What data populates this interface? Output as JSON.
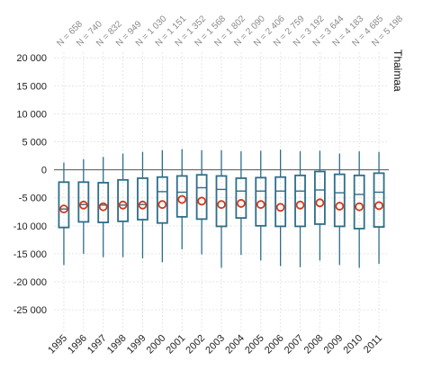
{
  "chart_data": {
    "type": "box",
    "panel_title": "Thaimaa",
    "categories": [
      "1995",
      "1996",
      "1997",
      "1998",
      "1999",
      "2000",
      "2001",
      "2002",
      "2003",
      "2004",
      "2005",
      "2006",
      "2007",
      "2008",
      "2009",
      "2010",
      "2011"
    ],
    "n_labels": [
      "N = 658",
      "N = 740",
      "N = 832",
      "N = 949",
      "N = 1 030",
      "N = 1 151",
      "N = 1 352",
      "N = 1 568",
      "N = 1 802",
      "N = 2 090",
      "N = 2 406",
      "N = 2 759",
      "N = 3 192",
      "N = 3 644",
      "N = 4 183",
      "N = 4 685",
      "N = 5 198"
    ],
    "ylim": [
      -29000,
      21000
    ],
    "yticks": [
      20000,
      15000,
      10000,
      5000,
      0,
      -5000,
      -10000,
      -15000,
      -20000,
      -25000
    ],
    "ytick_labels": [
      "20 000",
      "15 000",
      "10 000",
      "5 000",
      "0",
      "-5 000",
      "-10 000",
      "-15 000",
      "-20 000",
      "-25 000"
    ],
    "grid": true,
    "boxes": [
      {
        "whisker_low": -17000,
        "q1": -10300,
        "median": -7000,
        "q3": -2200,
        "whisker_high": 1300,
        "mean": -7000
      },
      {
        "whisker_low": -15000,
        "q1": -9300,
        "median": -6200,
        "q3": -2200,
        "whisker_high": 1900,
        "mean": -6300
      },
      {
        "whisker_low": -15600,
        "q1": -9400,
        "median": -6300,
        "q3": -2300,
        "whisker_high": 2300,
        "mean": -6600
      },
      {
        "whisker_low": -15600,
        "q1": -9200,
        "median": -6300,
        "q3": -1800,
        "whisker_high": 2900,
        "mean": -6300
      },
      {
        "whisker_low": -15800,
        "q1": -8900,
        "median": -6200,
        "q3": -1500,
        "whisker_high": 3200,
        "mean": -6300
      },
      {
        "whisker_low": -16500,
        "q1": -9500,
        "median": -3900,
        "q3": -1300,
        "whisker_high": 3500,
        "mean": -6200
      },
      {
        "whisker_low": -14200,
        "q1": -8400,
        "median": -4000,
        "q3": -1100,
        "whisker_high": 3700,
        "mean": -5300
      },
      {
        "whisker_low": -15100,
        "q1": -8800,
        "median": -3200,
        "q3": -900,
        "whisker_high": 3500,
        "mean": -5600
      },
      {
        "whisker_low": -17500,
        "q1": -10100,
        "median": -3500,
        "q3": -1100,
        "whisker_high": 3500,
        "mean": -6200
      },
      {
        "whisker_low": -15200,
        "q1": -8600,
        "median": -3800,
        "q3": -1500,
        "whisker_high": 3300,
        "mean": -6000
      },
      {
        "whisker_low": -16200,
        "q1": -10000,
        "median": -3800,
        "q3": -1400,
        "whisker_high": 3400,
        "mean": -6200
      },
      {
        "whisker_low": -17200,
        "q1": -10100,
        "median": -3800,
        "q3": -1300,
        "whisker_high": 3600,
        "mean": -6700
      },
      {
        "whisker_low": -17400,
        "q1": -10100,
        "median": -3800,
        "q3": -1000,
        "whisker_high": 3300,
        "mean": -6300
      },
      {
        "whisker_low": -16200,
        "q1": -9700,
        "median": -3600,
        "q3": -300,
        "whisker_high": 3400,
        "mean": -5900
      },
      {
        "whisker_low": -17000,
        "q1": -10100,
        "median": -4100,
        "q3": -800,
        "whisker_high": 2900,
        "mean": -6500
      },
      {
        "whisker_low": -17500,
        "q1": -10500,
        "median": -4400,
        "q3": -1000,
        "whisker_high": 3300,
        "mean": -6600
      },
      {
        "whisker_low": -16800,
        "q1": -10200,
        "median": -4000,
        "q3": -600,
        "whisker_high": 3200,
        "mean": -6400
      }
    ],
    "colors": {
      "box_stroke": "#2e6e88",
      "mean_marker": "#d03a1b",
      "grid": "#e6e6e6",
      "zero_line": "#555555"
    }
  }
}
